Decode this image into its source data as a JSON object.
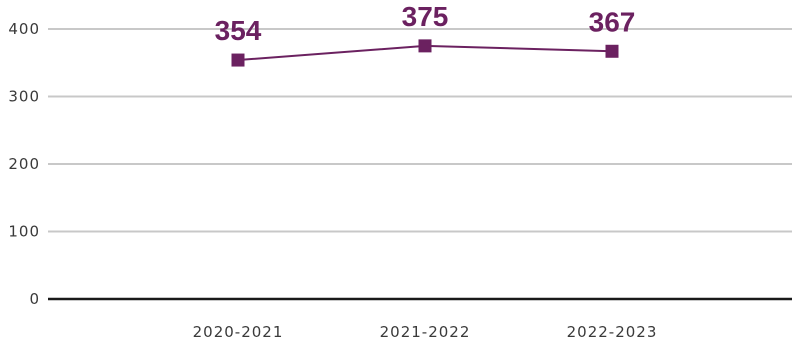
{
  "chart_data": {
    "type": "line",
    "categories": [
      "2020-2021",
      "2021-2022",
      "2022-2023"
    ],
    "series": [
      {
        "values": [
          354,
          375,
          367
        ]
      }
    ],
    "data_labels": [
      "354",
      "375",
      "367"
    ],
    "y_ticks": [
      "0",
      "100",
      "200",
      "300",
      "400"
    ],
    "ylim": [
      0,
      400
    ],
    "grid": true,
    "colors": {
      "line": "#6b2160",
      "grid": "#c8c8c8",
      "axis": "#1a1a1a"
    }
  }
}
